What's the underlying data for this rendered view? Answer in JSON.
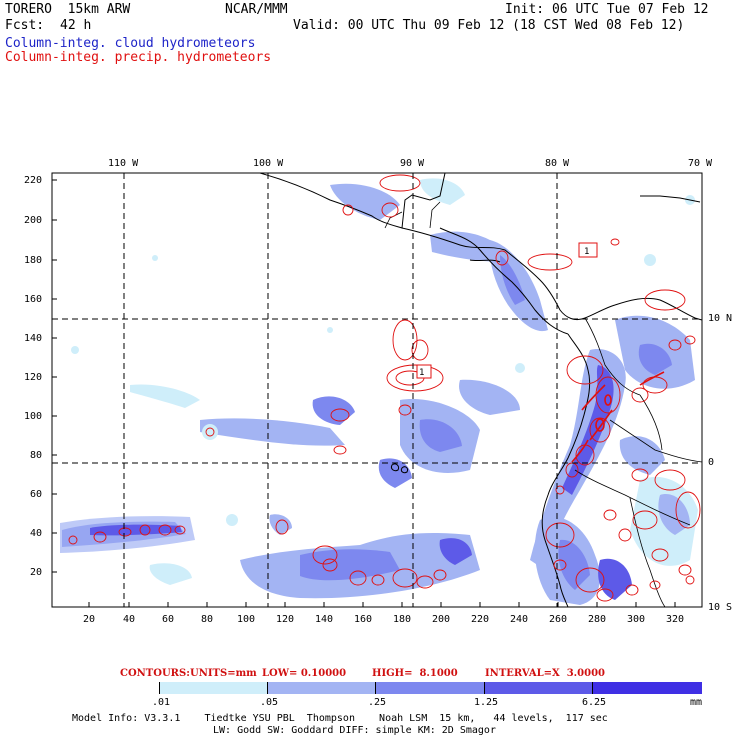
{
  "header": {
    "model": "TORERO  15km ARW",
    "center": "NCAR/MMM",
    "init": "Init: 06 UTC Tue 07 Feb 12",
    "fcst_label": "Fcst:",
    "fcst_value": "42 h",
    "valid": "Valid: 00 UTC Thu 09 Feb 12 (18 CST Wed 08 Feb 12)",
    "legend_cloud": "Column-integ. cloud hydrometeors",
    "legend_precip": "Column-integ. precip. hydrometeors"
  },
  "colors": {
    "cloud_text": "#1e24c8",
    "precip_text": "#e01010",
    "contour_text": "#d01010",
    "shade_1": "#cfeefa",
    "shade_2": "#a3b4f3",
    "shade_3": "#7d88ef",
    "shade_4": "#5d5ae8",
    "shade_5": "#3f2fe4",
    "shade_6": "#2a10e0"
  },
  "map": {
    "lon_labels": [
      "110 W",
      "100 W",
      "90 W",
      "80 W",
      "70 W"
    ],
    "lat_labels": [
      "10 N",
      "0",
      "10 S"
    ],
    "y_ticks": [
      "220",
      "200",
      "180",
      "160",
      "140",
      "120",
      "100",
      "80",
      "60",
      "40",
      "20"
    ],
    "x_ticks": [
      "20",
      "40",
      "60",
      "80",
      "100",
      "120",
      "140",
      "160",
      "180",
      "200",
      "220",
      "240",
      "260",
      "280",
      "300",
      "320"
    ],
    "box_labels": [
      "1",
      "1"
    ]
  },
  "contour_info": {
    "label": "CONTOURS:",
    "units": "UNITS=mm",
    "low": "LOW= 0.10000",
    "high": "HIGH=  8.1000",
    "interval": "INTERVAL=X  3.0000"
  },
  "colorbar": {
    "labels": [
      ".01",
      ".05",
      ".25",
      "1.25",
      "6.25"
    ],
    "unit": "mm"
  },
  "footer": {
    "line1": "Model Info: V3.3.1    Tiedtke YSU PBL  Thompson    Noah LSM  15 km,   44 levels,  117 sec",
    "line2": "LW: Godd SW: Goddard DIFF: simple KM: 2D Smagor"
  }
}
